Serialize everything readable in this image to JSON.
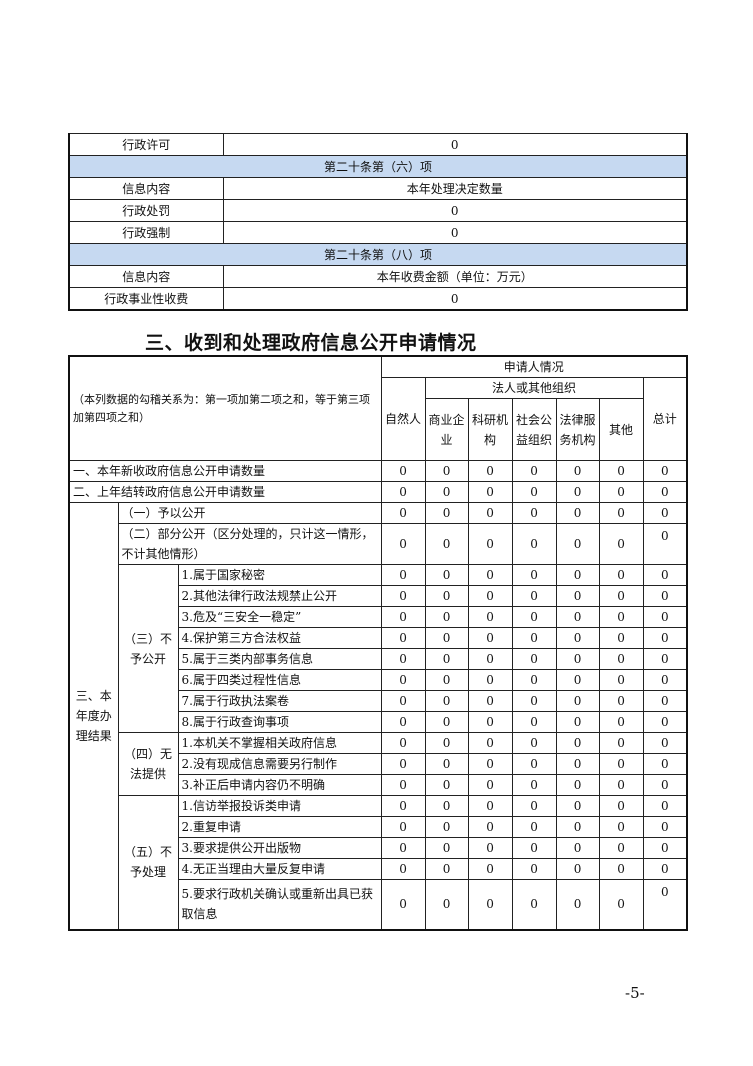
{
  "top_table": [
    {
      "type": "row",
      "label": "行政许可",
      "value": "0"
    },
    {
      "type": "band",
      "text": "第二十条第（六）项"
    },
    {
      "type": "row",
      "label": "信息内容",
      "value": "本年处理决定数量"
    },
    {
      "type": "row",
      "label": "行政处罚",
      "value": "0"
    },
    {
      "type": "row",
      "label": "行政强制",
      "value": "0"
    },
    {
      "type": "band",
      "text": "第二十条第（八）项"
    },
    {
      "type": "row",
      "label": "信息内容",
      "value": "本年收费金额（单位：万元）"
    },
    {
      "type": "row",
      "label": "行政事业性收费",
      "value": "0"
    }
  ],
  "section_title": "三、收到和处理政府信息公开申请情况",
  "apply_table": {
    "note": "（本列数据的勾稽关系为：第一项加第二项之和，等于第三项加第四项之和）",
    "applicant_header": "申请人情况",
    "org_header": "法人或其他组织",
    "natural_person": "自然人",
    "org_columns": [
      "商业企业",
      "科研机构",
      "社会公益组织",
      "法律服务机构",
      "其他"
    ],
    "total": "总计",
    "row1": {
      "label": "一、本年新收政府信息公开申请数量",
      "values": [
        "0",
        "0",
        "0",
        "0",
        "0",
        "0",
        "0"
      ]
    },
    "row2": {
      "label": "二、上年结转政府信息公开申请数量",
      "values": [
        "0",
        "0",
        "0",
        "0",
        "0",
        "0",
        "0"
      ]
    },
    "section3_label": "三、本年度办理结果",
    "r_open": {
      "label": "（一）予以公开",
      "values": [
        "0",
        "0",
        "0",
        "0",
        "0",
        "0",
        "0"
      ]
    },
    "r_partial": {
      "label": "（二）部分公开（区分处理的，只计这一情形，不计其他情形）",
      "values": [
        "0",
        "0",
        "0",
        "0",
        "0",
        "0",
        "0"
      ]
    },
    "groups": [
      {
        "label": "（三）不予公开",
        "items": [
          {
            "label": "1.属于国家秘密",
            "values": [
              "0",
              "0",
              "0",
              "0",
              "0",
              "0",
              "0"
            ]
          },
          {
            "label": "2.其他法律行政法规禁止公开",
            "values": [
              "0",
              "0",
              "0",
              "0",
              "0",
              "0",
              "0"
            ]
          },
          {
            "label": "3.危及“三安全一稳定”",
            "values": [
              "0",
              "0",
              "0",
              "0",
              "0",
              "0",
              "0"
            ]
          },
          {
            "label": "4.保护第三方合法权益",
            "values": [
              "0",
              "0",
              "0",
              "0",
              "0",
              "0",
              "0"
            ]
          },
          {
            "label": "5.属于三类内部事务信息",
            "values": [
              "0",
              "0",
              "0",
              "0",
              "0",
              "0",
              "0"
            ]
          },
          {
            "label": "6.属于四类过程性信息",
            "values": [
              "0",
              "0",
              "0",
              "0",
              "0",
              "0",
              "0"
            ]
          },
          {
            "label": "7.属于行政执法案卷",
            "values": [
              "0",
              "0",
              "0",
              "0",
              "0",
              "0",
              "0"
            ]
          },
          {
            "label": "8.属于行政查询事项",
            "values": [
              "0",
              "0",
              "0",
              "0",
              "0",
              "0",
              "0"
            ]
          }
        ]
      },
      {
        "label": "（四）无法提供",
        "items": [
          {
            "label": "1.本机关不掌握相关政府信息",
            "values": [
              "0",
              "0",
              "0",
              "0",
              "0",
              "0",
              "0"
            ]
          },
          {
            "label": "2.没有现成信息需要另行制作",
            "values": [
              "0",
              "0",
              "0",
              "0",
              "0",
              "0",
              "0"
            ]
          },
          {
            "label": "3.补正后申请内容仍不明确",
            "values": [
              "0",
              "0",
              "0",
              "0",
              "0",
              "0",
              "0"
            ]
          }
        ]
      },
      {
        "label": "（五）不予处理",
        "items": [
          {
            "label": "1.信访举报投诉类申请",
            "values": [
              "0",
              "0",
              "0",
              "0",
              "0",
              "0",
              "0"
            ]
          },
          {
            "label": "2.重复申请",
            "values": [
              "0",
              "0",
              "0",
              "0",
              "0",
              "0",
              "0"
            ]
          },
          {
            "label": "3.要求提供公开出版物",
            "values": [
              "0",
              "0",
              "0",
              "0",
              "0",
              "0",
              "0"
            ]
          },
          {
            "label": "4.无正当理由大量反复申请",
            "values": [
              "0",
              "0",
              "0",
              "0",
              "0",
              "0",
              "0"
            ]
          },
          {
            "label": "5.要求行政机关确认或重新出具已获取信息",
            "values": [
              "0",
              "0",
              "0",
              "0",
              "0",
              "0",
              "0"
            ]
          }
        ]
      }
    ]
  },
  "page_number": "-5-",
  "colors": {
    "band": "#c6d9f1",
    "border": "#222222"
  }
}
